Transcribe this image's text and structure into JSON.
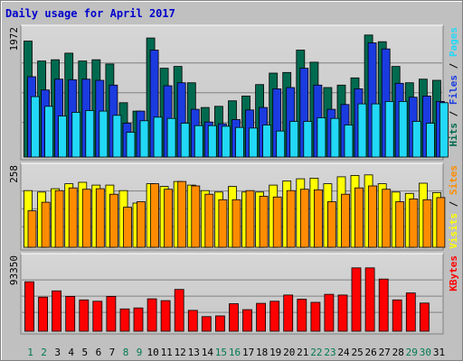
{
  "chart_data": {
    "type": "bar",
    "title": "Daily usage for April 2017",
    "categories": [
      "1",
      "2",
      "3",
      "4",
      "5",
      "6",
      "7",
      "8",
      "9",
      "10",
      "11",
      "12",
      "13",
      "14",
      "15",
      "16",
      "17",
      "18",
      "19",
      "20",
      "21",
      "22",
      "23",
      "24",
      "25",
      "26",
      "27",
      "28",
      "29",
      "30",
      "31"
    ],
    "weekend_days": [
      "1",
      "2",
      "8",
      "9",
      "15",
      "16",
      "22",
      "23",
      "29",
      "30"
    ],
    "grid": true,
    "legend": "right",
    "panels": [
      {
        "name": "hits-files-pages",
        "ymax": 1972,
        "ymax_label": "1972",
        "side_labels": [
          "Pages",
          "Files",
          "Hits"
        ],
        "series": [
          {
            "name": "Hits",
            "color": "#006a4f",
            "values": [
              1920,
              1590,
              1610,
              1720,
              1590,
              1610,
              1540,
              900,
              760,
              1970,
              1470,
              1500,
              1230,
              820,
              840,
              930,
              1010,
              1200,
              1390,
              1400,
              1770,
              1570,
              1150,
              1190,
              1310,
              2020,
              1910,
              1500,
              1230,
              1290,
              1270
            ]
          },
          {
            "name": "Files",
            "color": "#1a3be0",
            "values": [
              1330,
              1110,
              1290,
              1280,
              1290,
              1270,
              1190,
              560,
              760,
              1770,
              1180,
              1230,
              790,
              580,
              550,
              620,
              780,
              820,
              1130,
              1150,
              1470,
              1190,
              790,
              870,
              1130,
              1890,
              1790,
              1220,
              990,
              1010,
              920
            ]
          },
          {
            "name": "Pages",
            "color": "#22d8f7",
            "values": [
              1000,
              840,
              680,
              740,
              770,
              760,
              690,
              410,
              600,
              660,
              640,
              560,
              520,
              520,
              510,
              490,
              480,
              530,
              430,
              590,
              590,
              650,
              640,
              530,
              880,
              880,
              920,
              920,
              590,
              560,
              900
            ]
          }
        ]
      },
      {
        "name": "visits-sites",
        "ymax": 258,
        "ymax_label": "258",
        "side_labels": [
          "Sites",
          "Visits"
        ],
        "series": [
          {
            "name": "Visits",
            "color": "#ffff00",
            "values": [
              205,
              200,
              212,
              230,
              235,
              225,
              225,
              205,
              160,
              230,
              220,
              238,
              225,
              205,
              200,
              220,
              200,
              200,
              225,
              240,
              248,
              250,
              230,
              255,
              260,
              262,
              230,
              200,
              195,
              232,
              198
            ]
          },
          {
            "name": "Sites",
            "color": "#ff8c00",
            "values": [
              132,
              163,
              205,
              215,
              210,
              212,
              192,
              145,
              165,
              230,
              210,
              238,
              222,
              192,
              172,
              172,
              205,
              185,
              182,
              205,
              210,
              208,
              165,
              192,
              215,
              222,
              210,
              165,
              175,
              172,
              180
            ]
          }
        ]
      },
      {
        "name": "kbytes",
        "ymax": 93350,
        "ymax_label": "93350",
        "side_labels": [
          "KBytes"
        ],
        "series": [
          {
            "name": "KBytes",
            "color": "#ff0000",
            "values": [
              71000,
              49000,
              58000,
              50000,
              45000,
              43000,
              50000,
              32000,
              33500,
              46500,
              44000,
              60000,
              30000,
              21000,
              22000,
              39500,
              31000,
              40000,
              43000,
              52000,
              46000,
              41500,
              53000,
              52000,
              91000,
              91000,
              75000,
              45000,
              55000,
              40500,
              0
            ]
          }
        ]
      }
    ]
  }
}
